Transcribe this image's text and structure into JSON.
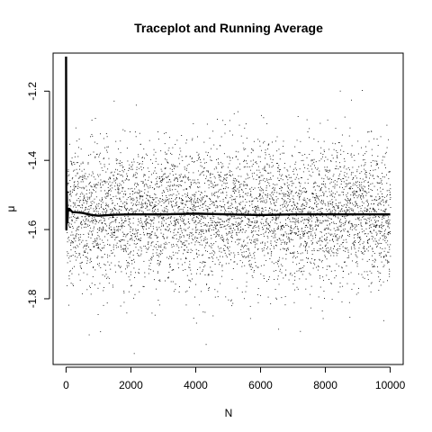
{
  "chart_data": {
    "type": "scatter",
    "title": "Traceplot and Running Average",
    "xlabel": "N",
    "ylabel": "μ",
    "xlim": [
      -400,
      10400
    ],
    "ylim": [
      -1.99,
      -1.09
    ],
    "x_ticks": [
      0,
      2000,
      4000,
      6000,
      8000,
      10000
    ],
    "y_ticks": [
      -1.2,
      -1.4,
      -1.6,
      -1.8
    ],
    "grid": false,
    "legend": "none",
    "series": [
      {
        "kind": "points",
        "n": 10000,
        "center": -1.555,
        "sd": 0.1,
        "color": "#000000"
      },
      {
        "kind": "running-average-line",
        "x": [
          0,
          10,
          20,
          40,
          60,
          80,
          100,
          150,
          200,
          300,
          500,
          800,
          1000,
          1500,
          2000,
          3000,
          4000,
          5000,
          6000,
          7000,
          8000,
          9000,
          10000
        ],
        "y": [
          -1.1,
          -1.6,
          -1.49,
          -1.58,
          -1.54,
          -1.545,
          -1.54,
          -1.545,
          -1.55,
          -1.55,
          -1.552,
          -1.558,
          -1.56,
          -1.557,
          -1.556,
          -1.556,
          -1.554,
          -1.556,
          -1.558,
          -1.556,
          -1.556,
          -1.556,
          -1.556
        ],
        "color": "#000000"
      }
    ]
  }
}
